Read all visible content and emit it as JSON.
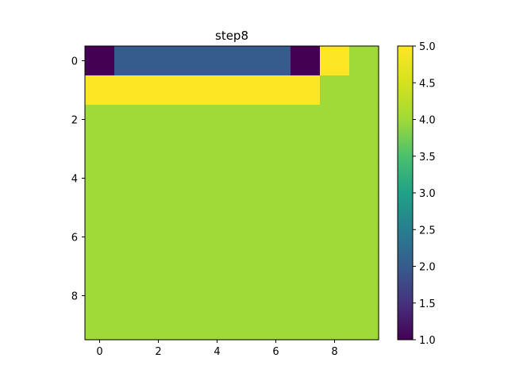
{
  "chart_data": {
    "type": "heatmap",
    "title": "step8",
    "xlabel": "",
    "ylabel": "",
    "rows": 10,
    "cols": 10,
    "values": [
      [
        1,
        2,
        2,
        2,
        2,
        2,
        2,
        1,
        5,
        4
      ],
      [
        5,
        5,
        5,
        5,
        5,
        5,
        5,
        5,
        4,
        4
      ],
      [
        4,
        4,
        4,
        4,
        4,
        4,
        4,
        4,
        4,
        4
      ],
      [
        4,
        4,
        4,
        4,
        4,
        4,
        4,
        4,
        4,
        4
      ],
      [
        4,
        4,
        4,
        4,
        4,
        4,
        4,
        4,
        4,
        4
      ],
      [
        4,
        4,
        4,
        4,
        4,
        4,
        4,
        4,
        4,
        4
      ],
      [
        4,
        4,
        4,
        4,
        4,
        4,
        4,
        4,
        4,
        4
      ],
      [
        4,
        4,
        4,
        4,
        4,
        4,
        4,
        4,
        4,
        4
      ],
      [
        4,
        4,
        4,
        4,
        4,
        4,
        4,
        4,
        4,
        4
      ],
      [
        4,
        4,
        4,
        4,
        4,
        4,
        4,
        4,
        4,
        4
      ]
    ],
    "xticks": [
      0,
      2,
      4,
      6,
      8
    ],
    "yticks": [
      0,
      2,
      4,
      6,
      8
    ],
    "colormap": "viridis",
    "colorbar": {
      "vmin": 1.0,
      "vmax": 5.0,
      "ticks": [
        "1.0",
        "1.5",
        "2.0",
        "2.5",
        "3.0",
        "3.5",
        "4.0",
        "4.5",
        "5.0"
      ]
    },
    "grid": false
  }
}
